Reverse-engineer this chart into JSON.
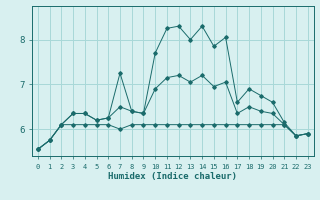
{
  "title": "",
  "xlabel": "Humidex (Indice chaleur)",
  "xlim": [
    -0.5,
    23.5
  ],
  "ylim": [
    5.4,
    8.75
  ],
  "bg_color": "#d8f0f0",
  "grid_color": "#a8d8d8",
  "line_color": "#1a6b6b",
  "xticks": [
    0,
    1,
    2,
    3,
    4,
    5,
    6,
    7,
    8,
    9,
    10,
    11,
    12,
    13,
    14,
    15,
    16,
    17,
    18,
    19,
    20,
    21,
    22,
    23
  ],
  "yticks": [
    6,
    7,
    8
  ],
  "max_line": [
    5.55,
    5.75,
    6.1,
    6.35,
    6.35,
    6.2,
    6.25,
    7.25,
    6.4,
    6.35,
    7.7,
    8.25,
    8.3,
    8.0,
    8.3,
    7.85,
    8.05,
    6.6,
    6.9,
    6.75,
    6.6,
    6.15,
    5.85,
    5.9
  ],
  "min_line": [
    5.55,
    5.75,
    6.1,
    6.1,
    6.1,
    6.1,
    6.1,
    6.0,
    6.1,
    6.1,
    6.1,
    6.1,
    6.1,
    6.1,
    6.1,
    6.1,
    6.1,
    6.1,
    6.1,
    6.1,
    6.1,
    6.1,
    5.85,
    5.9
  ],
  "mean_line": [
    5.55,
    5.75,
    6.1,
    6.35,
    6.35,
    6.2,
    6.25,
    6.5,
    6.4,
    6.35,
    6.9,
    7.15,
    7.2,
    7.05,
    7.2,
    6.95,
    7.05,
    6.35,
    6.5,
    6.4,
    6.35,
    6.1,
    5.85,
    5.9
  ]
}
